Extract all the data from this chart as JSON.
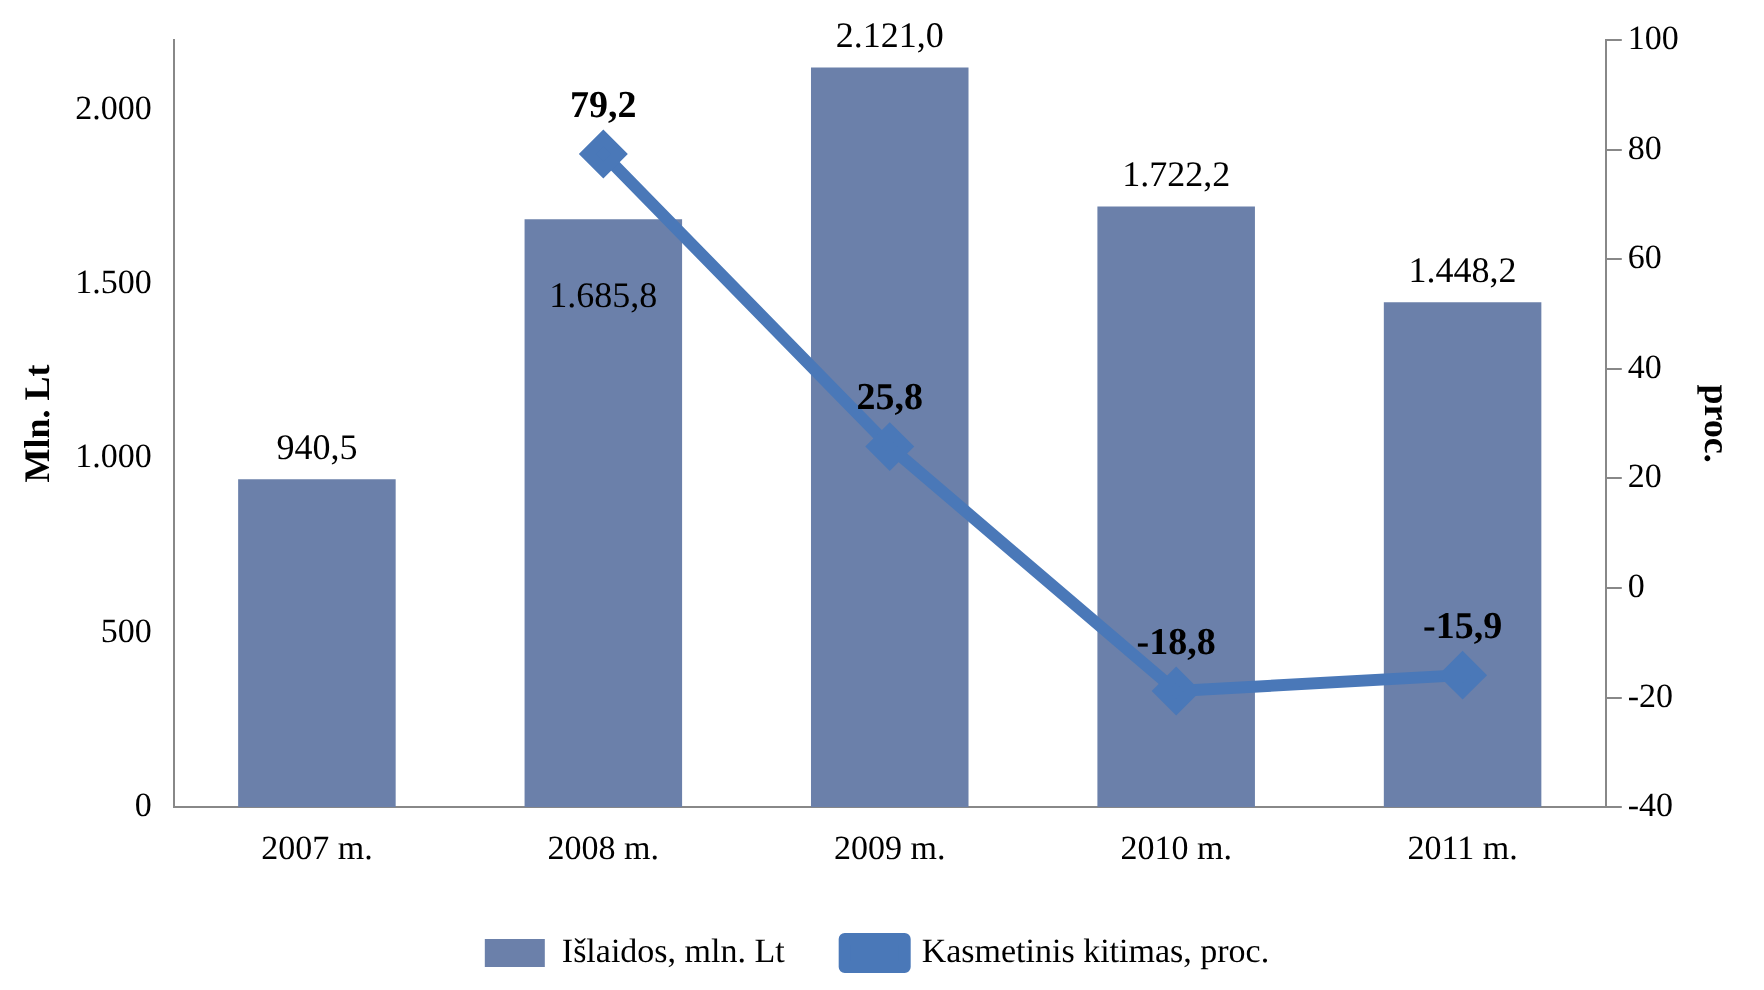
{
  "chart_data": {
    "type": "bar",
    "categories": [
      "2007 m.",
      "2008 m.",
      "2009 m.",
      "2010 m.",
      "2011 m."
    ],
    "series": [
      {
        "name": "Išlaidos, mln. Lt",
        "color": "#6b80aa",
        "values": [
          940.5,
          1685.8,
          2121.0,
          1722.2,
          1448.2
        ],
        "value_labels": [
          "940,5",
          "1.685,8",
          "2.121,0",
          "1.722,2",
          "1.448,2"
        ]
      },
      {
        "name": "Kasmetinis kitimas, proc.",
        "type": "line",
        "axis": "y2",
        "color": "#4a78b8",
        "marker": "diamond",
        "values": [
          null,
          79.2,
          25.8,
          -18.8,
          -15.9
        ],
        "value_labels": [
          null,
          "79,2",
          "25,8",
          "-18,8",
          "-15,9"
        ]
      }
    ],
    "ylabel": "Mln. Lt",
    "y2label": "proc.",
    "ylim": [
      0,
      2200
    ],
    "yticks": [
      0,
      500,
      {
        "value": 1000,
        "label": "1.000"
      },
      {
        "value": 1500,
        "label": "1.500"
      },
      {
        "value": 2000,
        "label": "2.000"
      }
    ],
    "y2lim": [
      -40,
      100
    ],
    "y2ticks": [
      -40,
      -20,
      0,
      20,
      40,
      60,
      80,
      100
    ],
    "grid": false,
    "legend": "bottom"
  }
}
